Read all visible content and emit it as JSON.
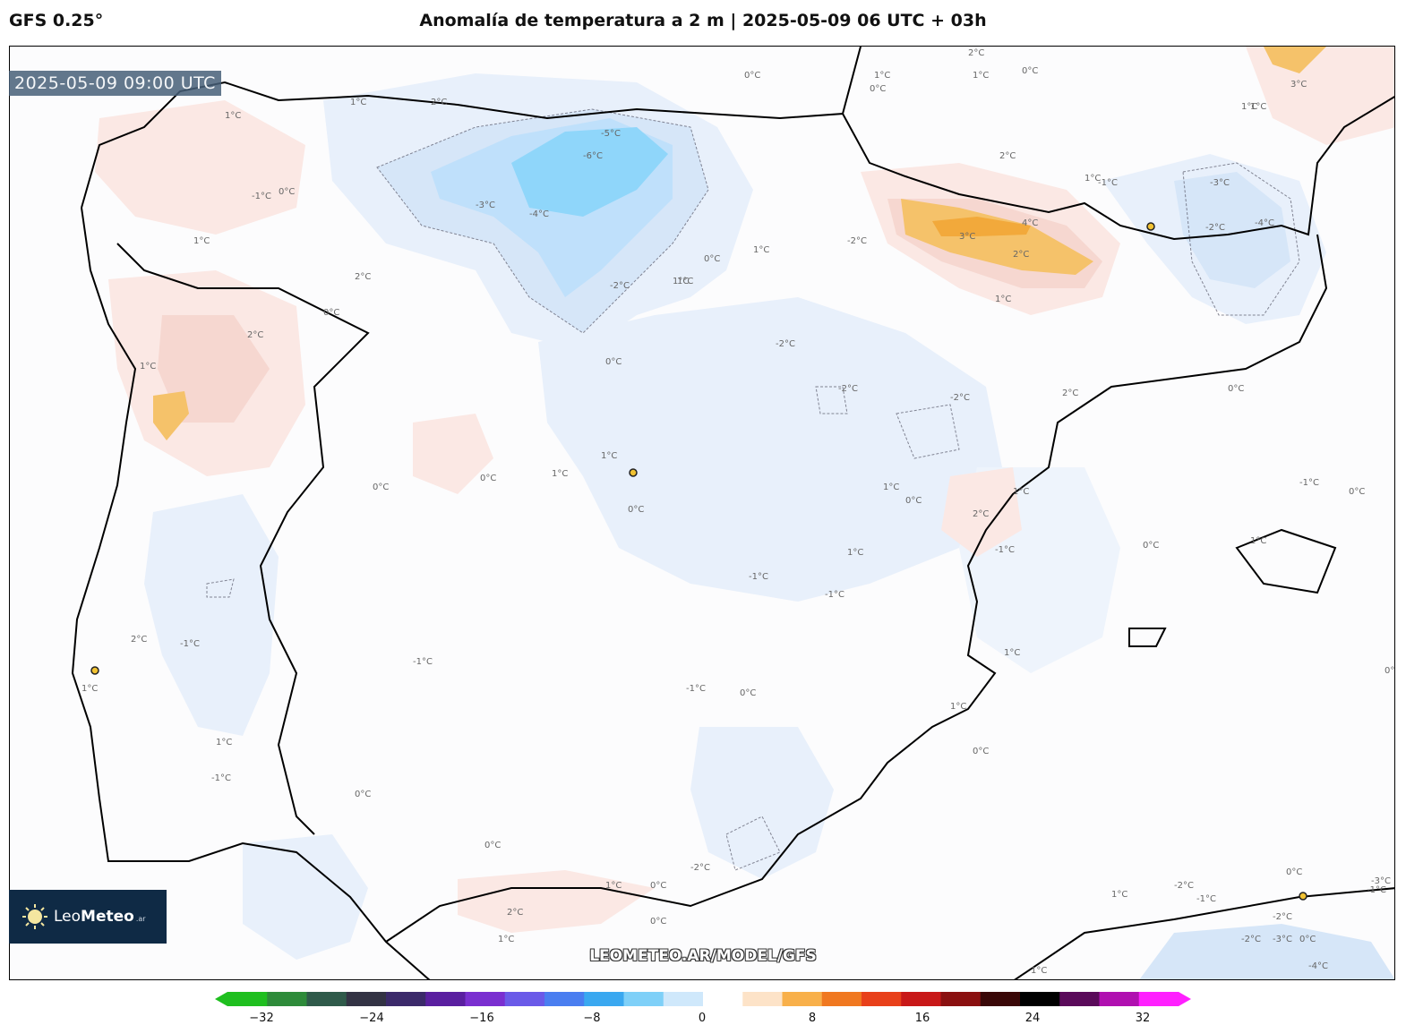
{
  "header": {
    "model": "GFS 0.25°",
    "title": "Anomalía de temperatura a 2 m | 2025-05-09 06 UTC + 03h"
  },
  "valid_time": "2025-05-09 09:00 UTC",
  "logo": {
    "name_light": "Leo",
    "name_bold": "Meteo",
    "suffix": ".ar",
    "icon": "sun-icon"
  },
  "watermark": "LEOMETEO.AR/MODEL/GFS",
  "colorbar": {
    "ticks": [
      "−32",
      "−24",
      "−16",
      "−8",
      "0",
      "8",
      "16",
      "24",
      "32"
    ],
    "colors": [
      "#1fbf1f",
      "#2e8b3a",
      "#2f5a4a",
      "#333344",
      "#3b2a6a",
      "#5a1fa0",
      "#7a2fd0",
      "#6a5ae8",
      "#4a7ef0",
      "#3aa8f0",
      "#7fd0f8",
      "#cfe8fb",
      "#ffffff",
      "#fde3c8",
      "#f8b04a",
      "#f07820",
      "#e8401a",
      "#c81818",
      "#8a1010",
      "#3a0808",
      "#000000",
      "#5a0a5a",
      "#b010b0",
      "#ff20ff"
    ]
  },
  "map": {
    "colors": {
      "cold1": "#e8f0fb",
      "cold2": "#d6e6f8",
      "cold3": "#bfe0fb",
      "cold4": "#8fd6fa",
      "warm1": "#fbe8e4",
      "warm2": "#f6d7d0",
      "warm3": "#f5c26a",
      "warm4": "#f2a93b",
      "coast": "#000000",
      "city": "#f1c232"
    },
    "contour_labels": [
      "0°C",
      "1°C",
      "1°C",
      "0°C",
      "1°C",
      "2°C",
      "1°C",
      "2°C",
      "3°C",
      "1°C",
      "0°C",
      "1°C",
      "-1°C",
      "0°C",
      "1°C",
      "2°C",
      "0°C",
      "-5°C",
      "-6°C",
      "-3°C",
      "-4°C",
      "-2°C",
      "1°C",
      "0°C",
      "1°C",
      "-2°C",
      "1°C",
      "0°C",
      "-2°C",
      "-2°C",
      "-2°C",
      "2°C",
      "4°C",
      "3°C",
      "2°C",
      "1°C",
      "2°C",
      "-3°C",
      "-2°C",
      "-4°C",
      "-1°C",
      "0°C",
      "1°C",
      "2°C",
      "1°C",
      "-1°C",
      "-1°C",
      "0°C",
      "1°C",
      "1°C",
      "0°C",
      "1°C",
      "0°C",
      "-1°C",
      "-1°C",
      "2°C",
      "1°C",
      "0°C",
      "1°C",
      "-1°C",
      "0°C",
      "1°C",
      "-1°C",
      "0°C",
      "0°C",
      "2°C",
      "1°C",
      "1°C",
      "-1°C",
      "-1°C",
      "0°C",
      "-2°C",
      "-2°C",
      "0°C",
      "-1°C",
      "-2°C",
      "0°C",
      "2°C",
      "1°C",
      "0°C",
      "1°C",
      "0°C",
      "0°C",
      "0°C",
      "1°C",
      "-1°C",
      "-2°C",
      "-3°C",
      "-4°C",
      "1°C",
      "0°C",
      "-3°C",
      "1°C",
      "1°C"
    ]
  }
}
